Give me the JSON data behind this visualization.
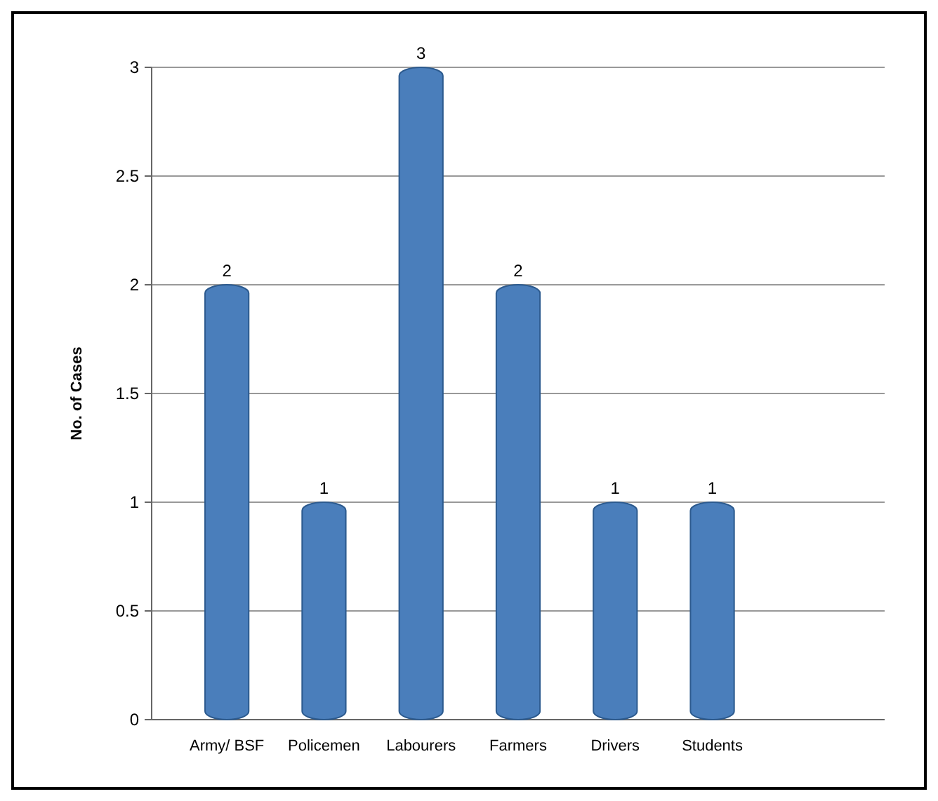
{
  "chart_data": {
    "type": "bar",
    "ylabel": "No. of Cases",
    "categories": [
      "Army/ BSF",
      "Policemen",
      "Labourers",
      "Farmers",
      "Drivers",
      "Students"
    ],
    "values": [
      2,
      1,
      3,
      2,
      1,
      1
    ],
    "color": "#4a7ebb",
    "ylim": [
      0,
      3
    ],
    "yticks": [
      0,
      0.5,
      1,
      1.5,
      2,
      2.5,
      3
    ],
    "grid": "y",
    "data_labels": true
  }
}
